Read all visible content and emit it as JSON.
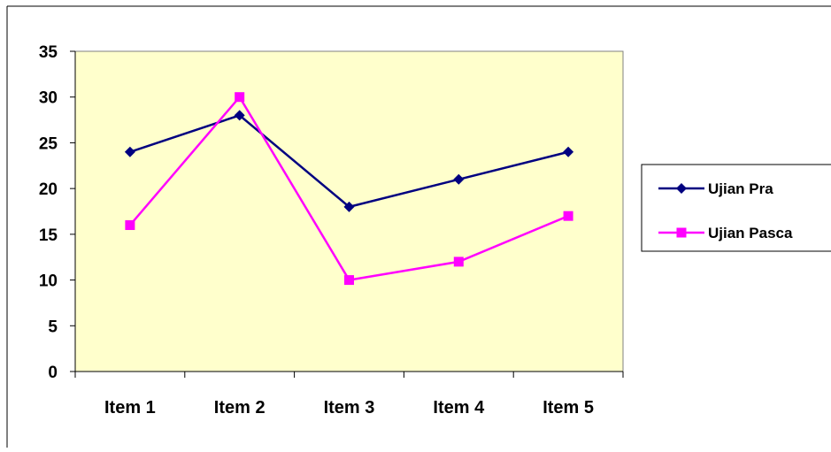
{
  "chart_data": {
    "type": "line",
    "categories": [
      "Item 1",
      "Item 2",
      "Item 3",
      "Item 4",
      "Item 5"
    ],
    "series": [
      {
        "name": "Ujian Pra",
        "values": [
          24,
          28,
          18,
          21,
          24
        ],
        "color": "#000080",
        "marker": "diamond"
      },
      {
        "name": "Ujian Pasca",
        "values": [
          16,
          30,
          10,
          12,
          17
        ],
        "color": "#FF00FF",
        "marker": "square"
      }
    ],
    "ylim": [
      0,
      35
    ],
    "yticks": [
      "0",
      "5",
      "10",
      "15",
      "20",
      "25",
      "30",
      "35"
    ],
    "plot_background": "#FFFFCC",
    "grid": false,
    "legend_position": "right"
  }
}
